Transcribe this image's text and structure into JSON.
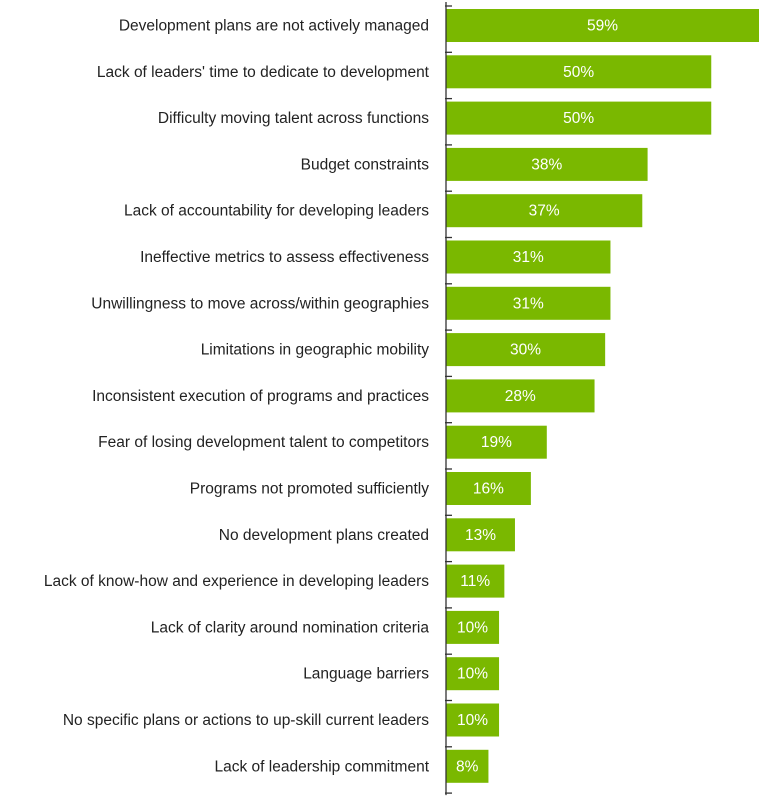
{
  "chart_data": {
    "type": "bar",
    "orientation": "horizontal",
    "categories": [
      "Development plans are not actively managed",
      "Lack of leaders' time to dedicate to development",
      "Difficulty moving talent across functions",
      "Budget constraints",
      "Lack of accountability for developing leaders",
      "Ineffective metrics to assess effectiveness",
      "Unwillingness to move across/within geographies",
      "Limitations in geographic mobility",
      "Inconsistent execution of programs and practices",
      "Fear of losing development talent to competitors",
      "Programs not promoted sufficiently",
      "No development plans created",
      "Lack of know-how and experience in developing leaders",
      "Lack of clarity around nomination criteria",
      "Language barriers",
      "No specific plans or actions to up-skill current leaders",
      "Lack of leadership commitment"
    ],
    "values": [
      59,
      50,
      50,
      38,
      37,
      31,
      31,
      30,
      28,
      19,
      16,
      13,
      11,
      10,
      10,
      10,
      8
    ],
    "value_labels": [
      "59%",
      "50%",
      "50%",
      "38%",
      "37%",
      "31%",
      "31%",
      "30%",
      "28%",
      "19%",
      "16%",
      "13%",
      "11%",
      "10%",
      "10%",
      "10%",
      "8%"
    ],
    "xlim": [
      0,
      59
    ],
    "grid": false,
    "legend": "none",
    "colors": {
      "bar": "#7ab800",
      "axis": "#333333",
      "value_text": "#ffffff",
      "category_text": "#222222"
    }
  }
}
